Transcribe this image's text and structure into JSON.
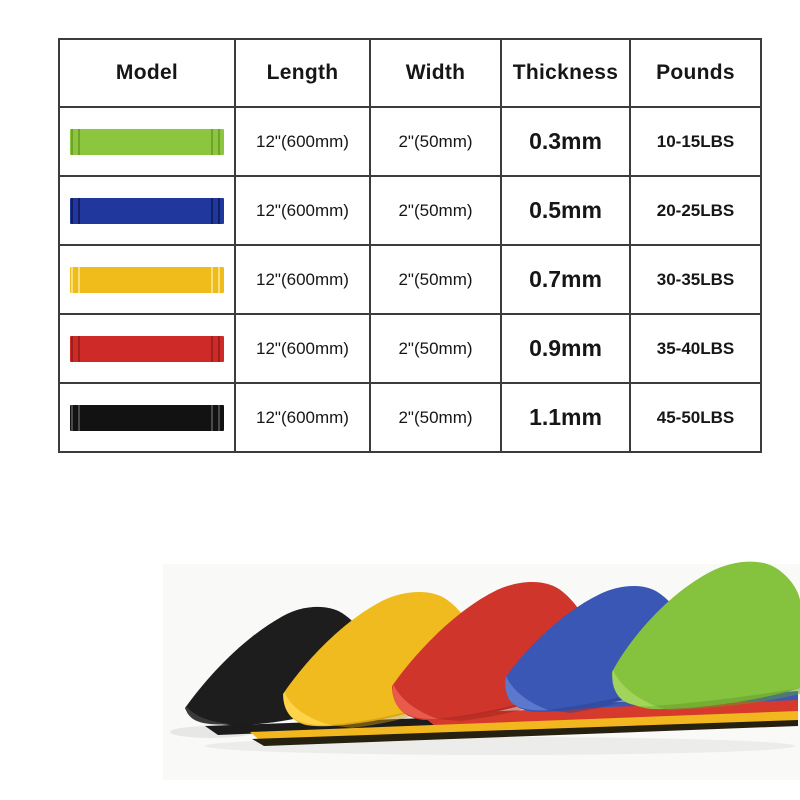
{
  "page": {
    "background": "#ffffff"
  },
  "table": {
    "border_color": "#3c3c3c",
    "columns": [
      {
        "label": "Model"
      },
      {
        "label": "Length"
      },
      {
        "label": "Width"
      },
      {
        "label": "Thickness"
      },
      {
        "label": "Pounds"
      }
    ],
    "rows": [
      {
        "color_name": "green",
        "swatch": {
          "base": "#8CC63E",
          "edge": "#6FA42A"
        },
        "length": "12\"(600mm)",
        "width": "2\"(50mm)",
        "thickness": "0.3mm",
        "pounds": "10-15LBS"
      },
      {
        "color_name": "blue",
        "swatch": {
          "base": "#20389E",
          "edge": "#131F62"
        },
        "length": "12\"(600mm)",
        "width": "2\"(50mm)",
        "thickness": "0.5mm",
        "pounds": "20-25LBS"
      },
      {
        "color_name": "yellow",
        "swatch": {
          "base": "#F0BC1C",
          "edge": "#F9DE7C"
        },
        "length": "12\"(600mm)",
        "width": "2\"(50mm)",
        "thickness": "0.7mm",
        "pounds": "30-35LBS"
      },
      {
        "color_name": "red",
        "swatch": {
          "base": "#CE2B28",
          "edge": "#9E201E"
        },
        "length": "12\"(600mm)",
        "width": "2\"(50mm)",
        "thickness": "0.9mm",
        "pounds": "35-40LBS"
      },
      {
        "color_name": "black",
        "swatch": {
          "base": "#121212",
          "edge": "#4a4a4a"
        },
        "length": "12\"(600mm)",
        "width": "2\"(50mm)",
        "thickness": "1.1mm",
        "pounds": "45-50LBS"
      }
    ]
  },
  "photo": {
    "alt": "Five folded latex resistance loop bands fanned out left to right",
    "order_left_to_right": [
      "black",
      "yellow",
      "red",
      "blue",
      "green"
    ],
    "background": "#f9f9f7",
    "colors": {
      "black": {
        "main": "#1d1d1d",
        "light": "#3a3a3a",
        "dark": "#0a0a0a"
      },
      "yellow": {
        "main": "#EFBB1F",
        "light": "#FFD44A",
        "dark": "#C08F0E"
      },
      "red": {
        "main": "#D0352C",
        "light": "#E85A4B",
        "dark": "#9E231C"
      },
      "blue": {
        "main": "#3A57B5",
        "light": "#5B78CC",
        "dark": "#27418F"
      },
      "green": {
        "main": "#85C23D",
        "light": "#A2D45B",
        "dark": "#649C2B"
      }
    },
    "tail_colors": {
      "black": "#1c1c1c",
      "blue": "#3C58B6",
      "red": "#D63A2C",
      "yellow": "#F2B71E",
      "bottom_edge": "#26200f"
    }
  },
  "chart_data": {
    "type": "table",
    "columns": [
      "Model",
      "Length",
      "Width",
      "Thickness",
      "Pounds"
    ],
    "rows": [
      [
        "green band",
        "12\"(600mm)",
        "2\"(50mm)",
        "0.3mm",
        "10-15LBS"
      ],
      [
        "blue band",
        "12\"(600mm)",
        "2\"(50mm)",
        "0.5mm",
        "20-25LBS"
      ],
      [
        "yellow band",
        "12\"(600mm)",
        "2\"(50mm)",
        "0.7mm",
        "30-35LBS"
      ],
      [
        "red band",
        "12\"(600mm)",
        "2\"(50mm)",
        "0.9mm",
        "35-40LBS"
      ],
      [
        "black band",
        "12\"(600mm)",
        "2\"(50mm)",
        "1.1mm",
        "45-50LBS"
      ]
    ]
  }
}
